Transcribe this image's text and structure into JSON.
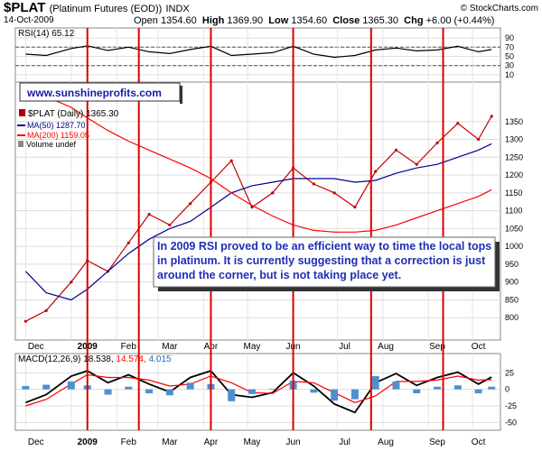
{
  "header": {
    "symbol": "$PLAT",
    "description": "(Platinum Futures (EOD))",
    "exchange": "INDX",
    "source": "© StockCharts.com",
    "date": "14-Oct-2009",
    "open_label": "Open",
    "open": "1354.60",
    "high_label": "High",
    "high": "1369.90",
    "low_label": "Low",
    "low": "1354.60",
    "close_label": "Close",
    "close": "1365.30",
    "chg_label": "Chg",
    "chg": "+6.00 (+0.44%)"
  },
  "website": "www.sunshineprofits.com",
  "annotation": "In 2009 RSI proved to be an efficient way to time the local tops in platinum. It is currently suggesting that a correction is just around the corner, but is not taking place yet.",
  "colors": {
    "price": "#c00000",
    "ma50": "#00008b",
    "ma200": "#ff0000",
    "signal_line": "#ff0000",
    "annotation_text": "#1e2fb5",
    "histogram": "#4f8fd0"
  },
  "chart_data": [
    {
      "type": "line",
      "title": "RSI(14) 65.12",
      "ylim": [
        0,
        100
      ],
      "y_ticks": [
        90,
        70,
        50,
        30,
        10
      ],
      "reference_lines": [
        70,
        30
      ],
      "x": [
        "2008-12-01",
        "2008-12-15",
        "2009-01-01",
        "2009-01-12",
        "2009-01-26",
        "2009-02-09",
        "2009-02-23",
        "2009-03-09",
        "2009-03-23",
        "2009-04-06",
        "2009-04-20",
        "2009-05-04",
        "2009-05-18",
        "2009-06-01",
        "2009-06-15",
        "2009-06-29",
        "2009-07-13",
        "2009-07-27",
        "2009-08-10",
        "2009-08-24",
        "2009-09-07",
        "2009-09-21",
        "2009-10-05",
        "2009-10-14"
      ],
      "series": [
        {
          "name": "RSI(14)",
          "values": [
            55,
            52,
            67,
            73,
            63,
            70,
            60,
            56,
            65,
            72,
            52,
            55,
            58,
            72,
            55,
            48,
            52,
            64,
            68,
            62,
            64,
            72,
            60,
            65
          ]
        }
      ]
    },
    {
      "type": "line",
      "title": "$PLAT (Daily) 1365.30",
      "xlabel": "",
      "ylabel": "",
      "ylim": [
        750,
        1400
      ],
      "y_ticks": [
        1350,
        1300,
        1250,
        1200,
        1150,
        1100,
        1050,
        1000,
        950,
        900,
        850,
        800
      ],
      "x_tick_labels": [
        "Dec",
        "2009",
        "Feb",
        "Mar",
        "Apr",
        "May",
        "Jun",
        "Jul",
        "Aug",
        "Sep",
        "Oct"
      ],
      "x": [
        "2008-12-01",
        "2008-12-15",
        "2009-01-01",
        "2009-01-12",
        "2009-01-26",
        "2009-02-09",
        "2009-02-23",
        "2009-03-09",
        "2009-03-23",
        "2009-04-06",
        "2009-04-20",
        "2009-05-04",
        "2009-05-18",
        "2009-06-01",
        "2009-06-15",
        "2009-06-29",
        "2009-07-13",
        "2009-07-27",
        "2009-08-10",
        "2009-08-24",
        "2009-09-07",
        "2009-09-21",
        "2009-10-05",
        "2009-10-14"
      ],
      "series": [
        {
          "name": "$PLAT (Daily) 1365.30",
          "values": [
            790,
            820,
            900,
            960,
            930,
            1010,
            1090,
            1060,
            1120,
            1180,
            1240,
            1110,
            1150,
            1220,
            1175,
            1150,
            1110,
            1210,
            1270,
            1230,
            1290,
            1345,
            1300,
            1365
          ]
        },
        {
          "name": "MA(50) 1287.70",
          "values": [
            930,
            870,
            850,
            880,
            930,
            980,
            1020,
            1050,
            1070,
            1110,
            1150,
            1170,
            1180,
            1190,
            1190,
            1190,
            1180,
            1185,
            1205,
            1220,
            1230,
            1250,
            1270,
            1287.7
          ]
        },
        {
          "name": "MA(200) 1159.05",
          "values": [
            1445,
            1420,
            1390,
            1360,
            1325,
            1295,
            1270,
            1245,
            1220,
            1190,
            1150,
            1115,
            1085,
            1060,
            1045,
            1040,
            1040,
            1045,
            1060,
            1080,
            1100,
            1120,
            1140,
            1159.05
          ]
        }
      ],
      "legend": [
        "$PLAT (Daily) 1365.30",
        "MA(50) 1287.70",
        "MA(200) 1159.05",
        "Volume undef"
      ],
      "legend_position": "top-left"
    },
    {
      "type": "line",
      "title": "MACD(12,26,9) 18.538, 14.574, 4.015",
      "ylim": [
        -55,
        35
      ],
      "y_ticks": [
        25,
        0,
        -25,
        -50
      ],
      "x": [
        "2008-12-01",
        "2008-12-15",
        "2009-01-01",
        "2009-01-12",
        "2009-01-26",
        "2009-02-09",
        "2009-02-23",
        "2009-03-09",
        "2009-03-23",
        "2009-04-06",
        "2009-04-20",
        "2009-05-04",
        "2009-05-18",
        "2009-06-01",
        "2009-06-15",
        "2009-06-29",
        "2009-07-13",
        "2009-07-27",
        "2009-08-10",
        "2009-08-24",
        "2009-09-07",
        "2009-09-21",
        "2009-10-05",
        "2009-10-14"
      ],
      "series": [
        {
          "name": "MACD(12,26,9)",
          "values": [
            -20,
            -8,
            20,
            28,
            10,
            22,
            8,
            -4,
            18,
            28,
            -8,
            -12,
            -5,
            25,
            5,
            -22,
            -35,
            10,
            24,
            6,
            18,
            26,
            8,
            18.538
          ]
        },
        {
          "name": "Signal",
          "values": [
            -25,
            -15,
            8,
            22,
            18,
            18,
            14,
            5,
            8,
            20,
            10,
            -5,
            -6,
            12,
            10,
            -5,
            -20,
            -10,
            12,
            12,
            14,
            20,
            14,
            14.574
          ]
        },
        {
          "name": "Histogram",
          "values": [
            5,
            7,
            12,
            6,
            -8,
            4,
            -6,
            -9,
            10,
            8,
            -18,
            -7,
            1,
            13,
            -5,
            -17,
            -15,
            20,
            12,
            -6,
            4,
            6,
            -6,
            4.015
          ]
        }
      ],
      "x_tick_labels": [
        "Dec",
        "2009",
        "Feb",
        "Mar",
        "Apr",
        "May",
        "Jun",
        "Jul",
        "Aug",
        "Sep",
        "Oct"
      ]
    }
  ],
  "vertical_markers": [
    "2009-01-12",
    "2009-02-16",
    "2009-04-06",
    "2009-06-01",
    "2009-07-24",
    "2009-09-11"
  ],
  "marker_color": "#dd0000"
}
